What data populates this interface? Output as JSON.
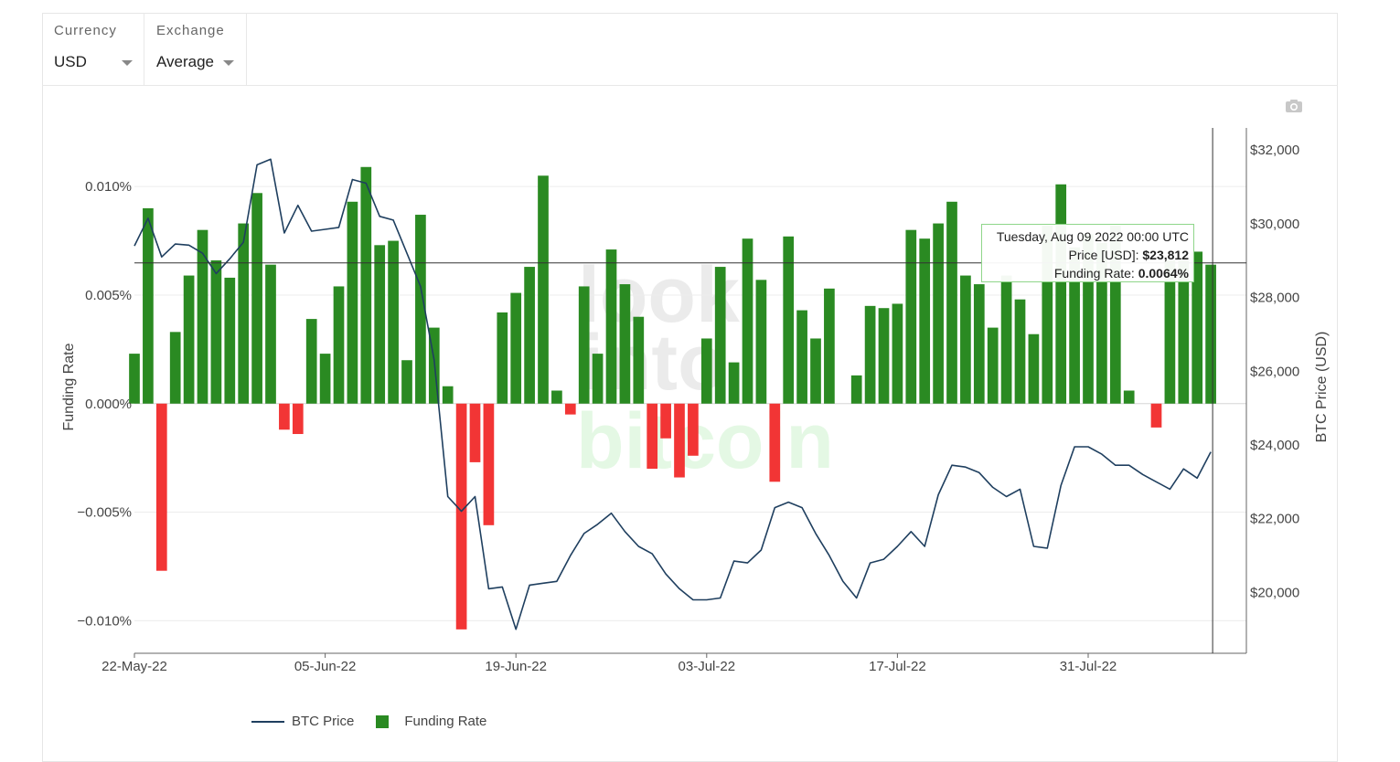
{
  "controls": {
    "currency": {
      "label": "Currency",
      "value": "USD"
    },
    "exchange": {
      "label": "Exchange",
      "value": "Average"
    }
  },
  "watermark": [
    "look",
    "into",
    "bitcoin"
  ],
  "colors": {
    "positive_bar": "#2a8a22",
    "negative_bar": "#f23535",
    "price_line": "#1f3f5f"
  },
  "tooltip": {
    "date": "Tuesday, Aug 09 2022 00:00 UTC",
    "price_label": "Price [USD]:",
    "price_value": "$23,812",
    "rate_label": "Funding Rate:",
    "rate_value": "0.0064%"
  },
  "legend": {
    "price": "BTC Price",
    "rate": "Funding Rate"
  },
  "chart_data": {
    "type": "bar+line",
    "x_start": "2022-05-22",
    "x_end": "2022-08-09",
    "xticks": [
      "22-May-22",
      "05-Jun-22",
      "19-Jun-22",
      "03-Jul-22",
      "17-Jul-22",
      "31-Jul-22"
    ],
    "ylabel": "Funding Rate",
    "y2label": "BTC Price (USD)",
    "ylim": [
      -0.0115,
      0.0127
    ],
    "y2lim": [
      18350,
      32600
    ],
    "yticks": [
      0.01,
      0.005,
      0.0,
      -0.005,
      -0.01
    ],
    "yticklabels": [
      "0.010%",
      "0.005%",
      "0.000%",
      "−0.005%",
      "−0.010%"
    ],
    "y2ticks": [
      32000,
      30000,
      28000,
      26000,
      24000,
      22000,
      20000
    ],
    "y2ticklabels": [
      "$32,000",
      "$30,000",
      "$28,000",
      "$26,000",
      "$24,000",
      "$22,000",
      "$20,000"
    ],
    "series": [
      {
        "name": "Funding Rate",
        "unit": "%",
        "values": [
          0.0023,
          0.009,
          -0.0077,
          0.0033,
          0.0059,
          0.008,
          0.0066,
          0.0058,
          0.0083,
          0.0097,
          0.0064,
          -0.0012,
          -0.0014,
          0.0039,
          0.0023,
          0.0054,
          0.0093,
          0.0109,
          0.0073,
          0.0075,
          0.002,
          0.0087,
          0.0035,
          0.0008,
          -0.0104,
          -0.0027,
          -0.0056,
          0.0042,
          0.0051,
          0.0063,
          0.0105,
          0.0006,
          -0.0005,
          0.0054,
          0.0023,
          0.0071,
          0.0055,
          0.004,
          -0.003,
          -0.0016,
          -0.0034,
          -0.0024,
          0.003,
          0.0063,
          0.0019,
          0.0076,
          0.0057,
          -0.0036,
          0.0077,
          0.0043,
          0.003,
          0.0053,
          0.0,
          0.0013,
          0.0045,
          0.0044,
          0.0046,
          0.008,
          0.0076,
          0.0083,
          0.0093,
          0.0059,
          0.0055,
          0.0035,
          0.0059,
          0.0048,
          0.0032,
          0.0082,
          0.0101,
          0.0072,
          0.0078,
          0.0074,
          0.0082,
          0.0006,
          0.0,
          -0.0011,
          0.0066,
          0.0066,
          0.007,
          0.0064
        ]
      },
      {
        "name": "BTC Price",
        "unit": "USD",
        "values": [
          29400,
          30150,
          29100,
          29450,
          29420,
          29200,
          28650,
          29050,
          29500,
          31600,
          31750,
          29750,
          30500,
          29800,
          29850,
          29900,
          31200,
          31100,
          30200,
          30100,
          29200,
          28300,
          26300,
          22600,
          22200,
          22600,
          20100,
          20150,
          19000,
          20200,
          20250,
          20300,
          21000,
          21600,
          21850,
          22150,
          21650,
          21250,
          21050,
          20500,
          20100,
          19800,
          19800,
          19850,
          20850,
          20800,
          21150,
          22300,
          22450,
          22300,
          21600,
          21000,
          20300,
          19850,
          20800,
          20900,
          21250,
          21650,
          21250,
          22650,
          23450,
          23400,
          23250,
          22850,
          22600,
          22800,
          21250,
          21200,
          22900,
          23950,
          23950,
          23750,
          23450,
          23450,
          23200,
          23000,
          22800,
          23350,
          23100,
          23812
        ]
      }
    ]
  }
}
